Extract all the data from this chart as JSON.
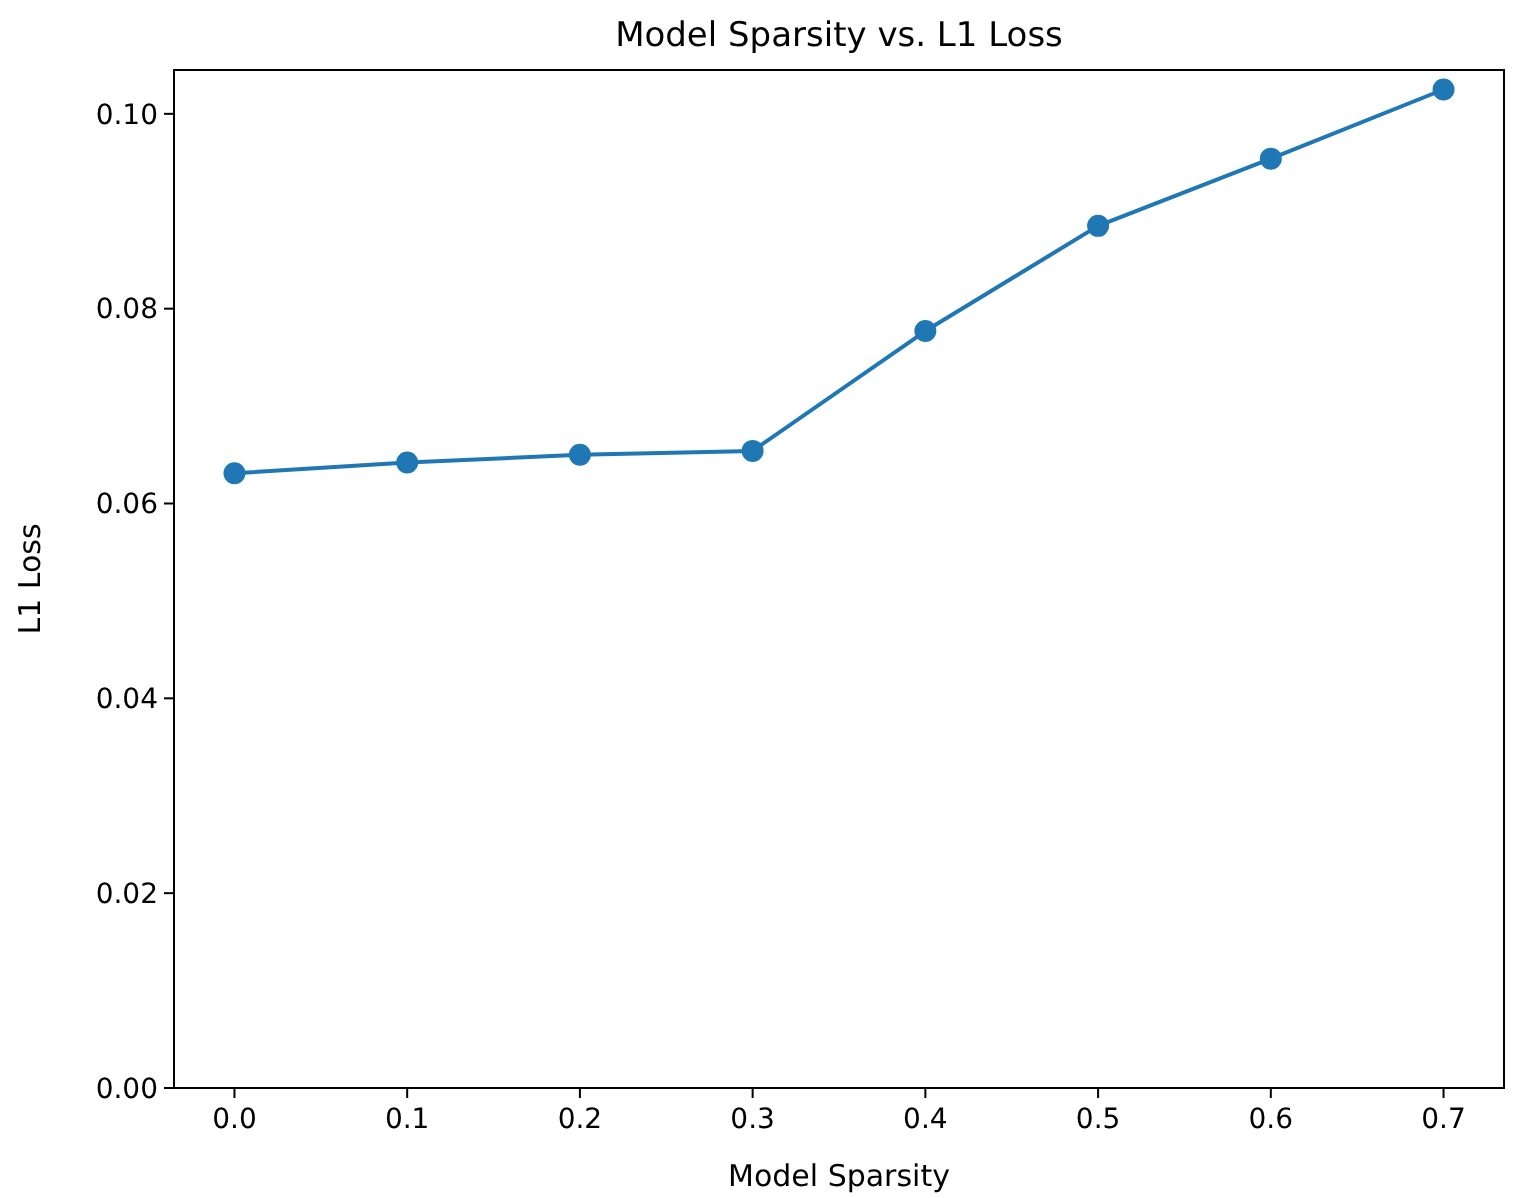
{
  "chart_data": {
    "type": "line",
    "title": "Model Sparsity vs. L1 Loss",
    "xlabel": "Model Sparsity",
    "ylabel": "L1 Loss",
    "x": [
      0.0,
      0.1,
      0.2,
      0.3,
      0.4,
      0.5,
      0.6,
      0.7
    ],
    "series": [
      {
        "color": "#1f77b4",
        "values": [
          0.0631,
          0.0642,
          0.065,
          0.0654,
          0.0777,
          0.0885,
          0.0954,
          0.1025
        ]
      }
    ],
    "xlim": [
      -0.035,
      0.735
    ],
    "ylim": [
      0,
      0.1045
    ],
    "xticks": [
      {
        "value": 0,
        "label": "0.0"
      },
      {
        "value": 0.1,
        "label": "0.1"
      },
      {
        "value": 0.2,
        "label": "0.2"
      },
      {
        "value": 0.3,
        "label": "0.3"
      },
      {
        "value": 0.4,
        "label": "0.4"
      },
      {
        "value": 0.5,
        "label": "0.5"
      },
      {
        "value": 0.6,
        "label": "0.6"
      },
      {
        "value": 0.7,
        "label": "0.7"
      }
    ],
    "yticks": [
      {
        "value": 0,
        "label": "0.00"
      },
      {
        "value": 0.02,
        "label": "0.02"
      },
      {
        "value": 0.04,
        "label": "0.04"
      },
      {
        "value": 0.06,
        "label": "0.06"
      },
      {
        "value": 0.08,
        "label": "0.08"
      },
      {
        "value": 0.1,
        "label": "0.10"
      }
    ],
    "marker": "circle",
    "grid": false
  }
}
